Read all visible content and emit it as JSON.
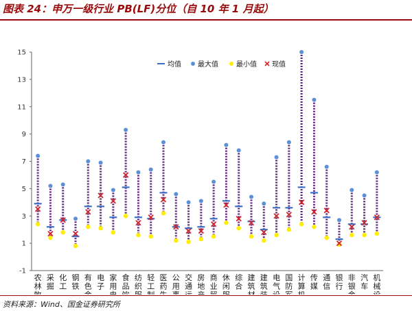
{
  "title": "图表 24：申万一级行业 PB(LF)分位（自 10 年 1 月起）",
  "source": "资料来源：Wind、国金证券研究所",
  "colors": {
    "range": "#5a1e7d",
    "mean": "#3b6fc5",
    "max": "#5b8fd6",
    "min": "#ffee00",
    "current": "#d0252a",
    "title": "#9a0b0b"
  },
  "chart_data": {
    "type": "range",
    "title": "",
    "xlabel": "",
    "ylabel": "",
    "ylim": [
      -1,
      15
    ],
    "yticks": [
      "-1",
      "1",
      "3",
      "5",
      "7",
      "9",
      "11",
      "13",
      "15"
    ],
    "grid": false,
    "legend_position": "top-right",
    "legend": [
      "均值",
      "最大值",
      "最小值",
      "现值"
    ],
    "categories": [
      "农林牧渔",
      "采掘",
      "化工",
      "钢铁",
      "有色金属",
      "电子",
      "家用电器",
      "食品饮料",
      "纺织服装",
      "轻工制造",
      "医药生物",
      "公用事业",
      "交通运输",
      "房地产",
      "商业贸易",
      "休闲服务",
      "综合",
      "建筑材料",
      "建筑装饰",
      "电气设备",
      "国防军工",
      "计算机",
      "传媒",
      "通信",
      "银行",
      "非银金融",
      "汽车",
      "机械设备"
    ],
    "series": [
      {
        "name": "均值",
        "values": [
          3.9,
          2.2,
          2.7,
          1.5,
          3.7,
          3.7,
          2.9,
          5.1,
          2.9,
          2.8,
          4.7,
          2.2,
          2.1,
          2.2,
          2.8,
          4.1,
          3.7,
          2.6,
          2.0,
          3.6,
          3.6,
          5.1,
          4.7,
          2.9,
          1.3,
          2.4,
          2.4,
          2.9
        ]
      },
      {
        "name": "最大值",
        "values": [
          7.4,
          5.2,
          5.3,
          2.8,
          7.0,
          6.9,
          4.9,
          9.3,
          6.2,
          6.4,
          8.4,
          4.6,
          4.0,
          4.1,
          5.5,
          8.2,
          7.8,
          4.4,
          3.9,
          7.3,
          8.4,
          15.0,
          11.5,
          6.6,
          2.7,
          4.9,
          4.5,
          6.2
        ]
      },
      {
        "name": "最小值",
        "values": [
          2.4,
          1.4,
          1.8,
          0.8,
          2.2,
          2.1,
          1.8,
          3.0,
          1.6,
          1.5,
          3.2,
          1.2,
          1.1,
          1.3,
          1.5,
          2.5,
          2.1,
          1.5,
          1.2,
          1.6,
          2.0,
          2.4,
          2.2,
          1.4,
          0.9,
          1.6,
          1.6,
          1.7
        ]
      },
      {
        "name": "现值",
        "values": [
          3.5,
          1.7,
          2.7,
          1.7,
          3.3,
          4.5,
          4.1,
          6.0,
          2.5,
          2.9,
          4.2,
          2.2,
          1.9,
          1.9,
          2.4,
          3.8,
          2.8,
          2.5,
          1.8,
          3.0,
          3.1,
          4.0,
          3.3,
          3.4,
          1.0,
          2.2,
          2.5,
          2.9
        ]
      }
    ]
  }
}
